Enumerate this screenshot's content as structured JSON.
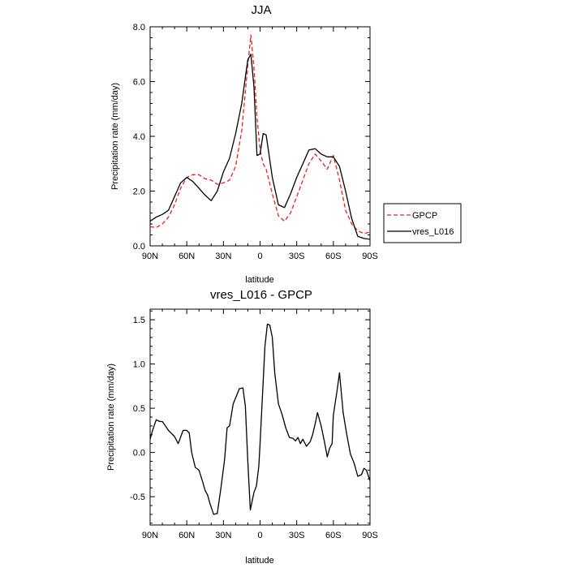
{
  "chart_data": [
    {
      "type": "line",
      "title": "JJA",
      "xlabel": "latitude",
      "ylabel": "Precipitation rate (mm/day)",
      "xlim": [
        90,
        -90
      ],
      "ylim": [
        0,
        8
      ],
      "x_ticks": [
        90,
        60,
        30,
        0,
        -30,
        -60,
        -90
      ],
      "x_tick_labels": [
        "90N",
        "60N",
        "30N",
        "0",
        "30S",
        "60S",
        "90S"
      ],
      "y_ticks": [
        0,
        2,
        4,
        6,
        8
      ],
      "y_tick_labels": [
        "0.0",
        "2.0",
        "4.0",
        "6.0",
        "8.0"
      ],
      "legend_position": "right",
      "series": [
        {
          "name": "GPCP",
          "color": "#e8201a",
          "style": "dashed",
          "x": [
            90,
            85,
            80,
            75,
            70,
            65,
            60,
            55,
            50,
            45,
            40,
            35,
            30,
            25,
            20,
            15,
            10,
            7.5,
            5,
            2.5,
            0,
            -2.5,
            -5,
            -10,
            -15,
            -20,
            -25,
            -30,
            -35,
            -40,
            -45,
            -50,
            -55,
            -60,
            -65,
            -70,
            -75,
            -80,
            -85,
            -90
          ],
          "values": [
            0.7,
            0.67,
            0.8,
            1.05,
            1.5,
            2.1,
            2.5,
            2.6,
            2.6,
            2.45,
            2.4,
            2.25,
            2.3,
            2.4,
            2.9,
            4.2,
            6.6,
            7.7,
            6.5,
            4.7,
            3.5,
            3.0,
            2.8,
            1.9,
            1.1,
            0.9,
            1.2,
            1.8,
            2.4,
            3.0,
            3.35,
            3.1,
            2.8,
            3.3,
            2.4,
            1.3,
            0.8,
            0.55,
            0.45,
            0.5
          ]
        },
        {
          "name": "vres_L016",
          "color": "#000000",
          "style": "solid",
          "x": [
            90,
            85,
            80,
            75,
            70,
            65,
            60,
            55,
            50,
            45,
            40,
            35,
            30,
            25,
            20,
            15,
            10,
            7.5,
            5,
            2.5,
            0,
            -2.5,
            -5,
            -10,
            -15,
            -20,
            -25,
            -30,
            -35,
            -40,
            -45,
            -50,
            -55,
            -60,
            -65,
            -70,
            -75,
            -80,
            -85,
            -90
          ],
          "values": [
            0.9,
            1.05,
            1.15,
            1.3,
            1.8,
            2.3,
            2.5,
            2.35,
            2.1,
            1.85,
            1.65,
            2.0,
            2.7,
            3.2,
            4.1,
            5.2,
            6.8,
            7.0,
            5.8,
            3.3,
            3.35,
            4.1,
            4.05,
            2.5,
            1.5,
            1.4,
            1.9,
            2.5,
            3.0,
            3.5,
            3.55,
            3.35,
            3.25,
            3.25,
            2.9,
            2.0,
            1.0,
            0.35,
            0.27,
            0.24
          ]
        }
      ]
    },
    {
      "type": "line",
      "title": "vres_L016 - GPCP",
      "xlabel": "latitude",
      "ylabel": "Precipitation rate (mm/day)",
      "xlim": [
        90,
        -90
      ],
      "ylim": [
        -0.82,
        1.62
      ],
      "x_ticks": [
        90,
        60,
        30,
        0,
        -30,
        -60,
        -90
      ],
      "x_tick_labels": [
        "90N",
        "60N",
        "30N",
        "0",
        "30S",
        "60S",
        "90S"
      ],
      "y_ticks": [
        -0.5,
        0,
        0.5,
        1,
        1.5
      ],
      "y_tick_labels": [
        "-0.5",
        "0.0",
        "0.5",
        "1.0",
        "1.5"
      ],
      "series": [
        {
          "name": "vres_L016 - GPCP",
          "color": "#000000",
          "style": "solid",
          "x": [
            90,
            88,
            85,
            82,
            80,
            75,
            70,
            67,
            63,
            60,
            58,
            56,
            53,
            50,
            47,
            45,
            43,
            41,
            38,
            35,
            32,
            29,
            27,
            25,
            22,
            19,
            17,
            14,
            12,
            10,
            8,
            5,
            3,
            1,
            0,
            -2,
            -4,
            -6,
            -8,
            -10,
            -12,
            -15,
            -18,
            -21,
            -24,
            -27,
            -29,
            -31,
            -33,
            -35,
            -38,
            -41,
            -43,
            -45,
            -47,
            -50,
            -53,
            -55,
            -57,
            -59,
            -60,
            -63,
            -65,
            -68,
            -71,
            -74,
            -77,
            -80,
            -83,
            -85,
            -87,
            -90
          ],
          "values": [
            0.15,
            0.25,
            0.37,
            0.35,
            0.35,
            0.25,
            0.18,
            0.1,
            0.25,
            0.25,
            0.22,
            0.0,
            -0.17,
            -0.2,
            -0.33,
            -0.43,
            -0.48,
            -0.58,
            -0.7,
            -0.69,
            -0.4,
            -0.08,
            0.28,
            0.3,
            0.55,
            0.65,
            0.72,
            0.73,
            0.52,
            -0.1,
            -0.65,
            -0.45,
            -0.38,
            -0.15,
            0.1,
            0.65,
            1.2,
            1.45,
            1.44,
            1.3,
            0.9,
            0.55,
            0.43,
            0.28,
            0.17,
            0.16,
            0.13,
            0.17,
            0.1,
            0.15,
            0.07,
            0.12,
            0.2,
            0.32,
            0.45,
            0.3,
            0.1,
            -0.05,
            0.05,
            0.1,
            0.42,
            0.7,
            0.9,
            0.45,
            0.2,
            -0.02,
            -0.12,
            -0.27,
            -0.25,
            -0.18,
            -0.2,
            -0.32
          ]
        }
      ]
    }
  ],
  "legend": {
    "entries": [
      {
        "label": "GPCP",
        "color": "#e8201a",
        "style": "dashed"
      },
      {
        "label": "vres_L016",
        "color": "#000000",
        "style": "solid"
      }
    ]
  }
}
